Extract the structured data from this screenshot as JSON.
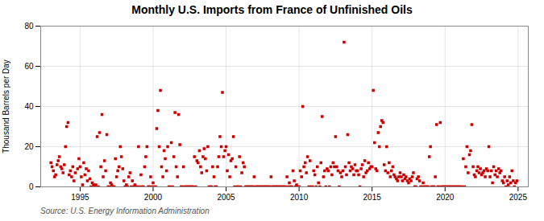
{
  "chart_data": {
    "type": "scatter",
    "title": "Monthly U.S. Imports from France of Unfinished Oils",
    "ylabel": "Thousand Barrels per Day",
    "annotations": [
      "Source: U.S. Energy Information Administration"
    ],
    "color": "#cc0000",
    "marker": "square",
    "grid": true,
    "xlim": [
      1992.3,
      2025.7
    ],
    "xticks": [
      1995,
      2000,
      2005,
      2010,
      2015,
      2020,
      2025
    ],
    "ylim": [
      0,
      80
    ],
    "yticks": [
      0,
      20,
      40,
      60,
      80
    ],
    "x": [
      1993.0,
      1993.08,
      1993.17,
      1993.25,
      1993.33,
      1993.42,
      1993.5,
      1993.58,
      1993.67,
      1993.75,
      1993.83,
      1993.92,
      1994.0,
      1994.08,
      1994.17,
      1994.25,
      1994.33,
      1994.42,
      1994.5,
      1994.58,
      1994.67,
      1994.83,
      1994.92,
      1995.0,
      1995.08,
      1995.17,
      1995.25,
      1995.33,
      1995.42,
      1995.5,
      1995.58,
      1995.67,
      1995.75,
      1995.83,
      1995.92,
      1996.0,
      1996.08,
      1996.17,
      1996.25,
      1996.33,
      1996.42,
      1996.5,
      1996.58,
      1996.67,
      1996.75,
      1996.83,
      1996.92,
      1997.0,
      1997.08,
      1997.17,
      1997.25,
      1997.33,
      1997.42,
      1997.5,
      1997.58,
      1997.67,
      1997.75,
      1997.83,
      1997.92,
      1998.0,
      1998.08,
      1998.17,
      1998.25,
      1998.33,
      1998.42,
      1998.5,
      1998.58,
      1998.67,
      1998.75,
      1998.83,
      1998.92,
      1999.0,
      1999.08,
      1999.17,
      1999.25,
      1999.33,
      1999.42,
      1999.5,
      1999.58,
      1999.67,
      1999.75,
      1999.83,
      1999.92,
      2000.0,
      2000.08,
      2000.17,
      2000.25,
      2000.33,
      2000.42,
      2000.5,
      2000.58,
      2000.67,
      2000.75,
      2000.83,
      2000.92,
      2001.0,
      2001.08,
      2001.17,
      2001.25,
      2001.33,
      2001.42,
      2001.5,
      2001.58,
      2001.67,
      2001.75,
      2001.83,
      2001.92,
      2002.0,
      2002.08,
      2002.17,
      2002.25,
      2002.33,
      2002.42,
      2002.5,
      2002.58,
      2002.67,
      2002.75,
      2002.83,
      2002.92,
      2003.0,
      2003.08,
      2003.17,
      2003.25,
      2003.33,
      2003.42,
      2003.5,
      2003.58,
      2003.67,
      2003.75,
      2003.83,
      2003.92,
      2004.0,
      2004.08,
      2004.17,
      2004.25,
      2004.33,
      2004.42,
      2004.5,
      2004.58,
      2004.67,
      2004.75,
      2004.83,
      2004.92,
      2005.0,
      2005.08,
      2005.17,
      2005.25,
      2005.33,
      2005.42,
      2005.5,
      2005.58,
      2005.67,
      2005.75,
      2005.83,
      2005.92,
      2006.0,
      2006.08,
      2006.17,
      2006.25,
      2006.33,
      2006.42,
      2006.5,
      2006.58,
      2006.67,
      2006.75,
      2006.83,
      2006.92,
      2007.0,
      2007.08,
      2007.17,
      2007.25,
      2007.33,
      2007.42,
      2007.5,
      2007.58,
      2007.67,
      2007.75,
      2007.83,
      2007.92,
      2008.0,
      2008.08,
      2008.17,
      2008.25,
      2008.33,
      2008.42,
      2008.5,
      2008.58,
      2008.67,
      2008.75,
      2008.83,
      2008.92,
      2009.0,
      2009.08,
      2009.17,
      2009.25,
      2009.33,
      2009.42,
      2009.5,
      2009.58,
      2009.67,
      2009.75,
      2009.83,
      2009.92,
      2010.0,
      2010.08,
      2010.17,
      2010.25,
      2010.33,
      2010.42,
      2010.5,
      2010.58,
      2010.67,
      2010.75,
      2010.83,
      2010.92,
      2011.0,
      2011.08,
      2011.17,
      2011.25,
      2011.33,
      2011.42,
      2011.5,
      2011.58,
      2011.67,
      2011.75,
      2011.83,
      2011.92,
      2012.0,
      2012.08,
      2012.17,
      2012.25,
      2012.33,
      2012.42,
      2012.5,
      2012.58,
      2012.67,
      2012.75,
      2012.83,
      2012.92,
      2013.0,
      2013.08,
      2013.17,
      2013.25,
      2013.33,
      2013.42,
      2013.5,
      2013.58,
      2013.67,
      2013.75,
      2013.83,
      2013.92,
      2014.0,
      2014.08,
      2014.17,
      2014.25,
      2014.33,
      2014.42,
      2014.5,
      2014.58,
      2014.67,
      2014.75,
      2014.83,
      2014.92,
      2015.0,
      2015.08,
      2015.17,
      2015.25,
      2015.33,
      2015.42,
      2015.5,
      2015.58,
      2015.67,
      2015.75,
      2015.83,
      2015.92,
      2016.0,
      2016.08,
      2016.17,
      2016.25,
      2016.33,
      2016.42,
      2016.5,
      2016.58,
      2016.67,
      2016.75,
      2016.83,
      2016.92,
      2017.0,
      2017.08,
      2017.17,
      2017.25,
      2017.33,
      2017.42,
      2017.5,
      2017.58,
      2017.67,
      2017.75,
      2017.83,
      2017.92,
      2018.0,
      2018.08,
      2018.17,
      2018.25,
      2018.33,
      2018.42,
      2018.5,
      2018.58,
      2018.67,
      2018.75,
      2018.83,
      2018.92,
      2019.0,
      2019.08,
      2019.17,
      2019.25,
      2019.33,
      2019.42,
      2019.5,
      2019.58,
      2019.67,
      2019.75,
      2019.83,
      2019.92,
      2020.0,
      2020.08,
      2020.17,
      2020.25,
      2020.33,
      2020.42,
      2020.5,
      2020.58,
      2020.67,
      2020.75,
      2020.83,
      2020.92,
      2021.0,
      2021.08,
      2021.17,
      2021.25,
      2021.33,
      2021.42,
      2021.5,
      2021.58,
      2021.67,
      2021.75,
      2021.83,
      2021.92,
      2022.0,
      2022.08,
      2022.17,
      2022.25,
      2022.33,
      2022.42,
      2022.5,
      2022.58,
      2022.67,
      2022.75,
      2022.83,
      2022.92,
      2023.0,
      2023.08,
      2023.17,
      2023.25,
      2023.33,
      2023.42,
      2023.5,
      2023.58,
      2023.67,
      2023.75,
      2023.83,
      2023.92,
      2024.0,
      2024.08,
      2024.17,
      2024.25,
      2024.33,
      2024.42,
      2024.5,
      2024.58,
      2024.67,
      2024.75,
      2024.83,
      2024.92
    ],
    "values": [
      12,
      10,
      8,
      5,
      6,
      11,
      13,
      15,
      10,
      9,
      7,
      11,
      20,
      30,
      32,
      6,
      8,
      5,
      10,
      3,
      7,
      9,
      14,
      10,
      5,
      1,
      12,
      6,
      9,
      3,
      8,
      4,
      0,
      2,
      1,
      0,
      1,
      25,
      0,
      27,
      10,
      36,
      5,
      13,
      8,
      26,
      0,
      0,
      2,
      1,
      0,
      0,
      14,
      5,
      8,
      10,
      20,
      15,
      9,
      3,
      0,
      1,
      0,
      5,
      7,
      0,
      3,
      0,
      1,
      0,
      0,
      20,
      0,
      6,
      0,
      0,
      10,
      15,
      20,
      0,
      0,
      5,
      0,
      2,
      0,
      0,
      29,
      38,
      20,
      48,
      10,
      5,
      18,
      14,
      8,
      20,
      0,
      0,
      22,
      0,
      15,
      37,
      10,
      5,
      36,
      21,
      0,
      0,
      10,
      0,
      0,
      0,
      0,
      0,
      0,
      0,
      0,
      15,
      0,
      13,
      12,
      18,
      10,
      7,
      15,
      19,
      14,
      8,
      20,
      0,
      0,
      0,
      10,
      5,
      0,
      0,
      10,
      15,
      25,
      20,
      47,
      15,
      18,
      20,
      8,
      16,
      5,
      13,
      14,
      25,
      0,
      10,
      0,
      0,
      15,
      0,
      7,
      12,
      10,
      0,
      0,
      0,
      0,
      0,
      0,
      0,
      5,
      0,
      0,
      0,
      0,
      0,
      0,
      0,
      0,
      0,
      0,
      0,
      0,
      0,
      5,
      0,
      0,
      0,
      0,
      0,
      0,
      0,
      0,
      0,
      0,
      0,
      0,
      5,
      0,
      2,
      0,
      0,
      8,
      3,
      0,
      1,
      0,
      0,
      8,
      5,
      40,
      10,
      12,
      7,
      15,
      0,
      13,
      0,
      0,
      8,
      6,
      0,
      10,
      2,
      0,
      12,
      35,
      5,
      8,
      0,
      9,
      8,
      0,
      10,
      6,
      12,
      10,
      25,
      10,
      8,
      0,
      7,
      5,
      8,
      72,
      10,
      6,
      26,
      12,
      8,
      10,
      9,
      6,
      11,
      8,
      8,
      6,
      0,
      9,
      11,
      5,
      13,
      7,
      8,
      12,
      9,
      10,
      10,
      48,
      22,
      9,
      8,
      27,
      20,
      30,
      33,
      32,
      11,
      8,
      20,
      7,
      12,
      5,
      8,
      10,
      6,
      5,
      4,
      3,
      5,
      7,
      5,
      3,
      6,
      4,
      5,
      3,
      2,
      4,
      3,
      5,
      7,
      0,
      0,
      4,
      5,
      3,
      0,
      0,
      2,
      0,
      0,
      0,
      0,
      15,
      20,
      0,
      0,
      0,
      5,
      31,
      0,
      0,
      32,
      0,
      0,
      0,
      0,
      0,
      0,
      0,
      0,
      0,
      0,
      0,
      0,
      0,
      0,
      0,
      0,
      0,
      0,
      14,
      0,
      10,
      20,
      7,
      16,
      18,
      31,
      10,
      6,
      5,
      8,
      10,
      7,
      9,
      6,
      7,
      8,
      5,
      9,
      8,
      20,
      5,
      8,
      2,
      10,
      6,
      8,
      5,
      9,
      7,
      8,
      3,
      2,
      5,
      0,
      3,
      1,
      5,
      2,
      8,
      3,
      0,
      2,
      3
    ]
  }
}
